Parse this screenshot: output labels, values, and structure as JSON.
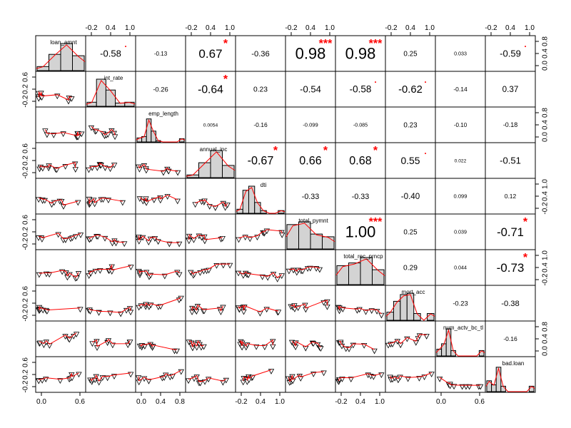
{
  "chart_data": {
    "type": "scatter-matrix",
    "title": "",
    "variables": [
      "loan_amnt",
      "int_rate",
      "emp_length",
      "annual_inc",
      "dti",
      "total_pymnt",
      "total_rec_prncp",
      "mort_acc",
      "num_actv_bc_tl",
      "bad.loan"
    ],
    "correlations": [
      {
        "row": 0,
        "col": 1,
        "value": "-0.58",
        "stars": ".",
        "scale": 1.0
      },
      {
        "row": 0,
        "col": 2,
        "value": "-0.13",
        "stars": "",
        "scale": 0.45
      },
      {
        "row": 0,
        "col": 3,
        "value": "0.67",
        "stars": "*",
        "scale": 1.45
      },
      {
        "row": 0,
        "col": 4,
        "value": "-0.36",
        "stars": "",
        "scale": 0.8
      },
      {
        "row": 0,
        "col": 5,
        "value": "0.98",
        "stars": "***",
        "scale": 2.0
      },
      {
        "row": 0,
        "col": 6,
        "value": "0.98",
        "stars": "***",
        "scale": 2.0
      },
      {
        "row": 0,
        "col": 7,
        "value": "0.25",
        "stars": "",
        "scale": 0.65
      },
      {
        "row": 0,
        "col": 8,
        "value": "0.033",
        "stars": "",
        "scale": 0.35
      },
      {
        "row": 0,
        "col": 9,
        "value": "-0.59",
        "stars": ".",
        "scale": 1.0
      },
      {
        "row": 1,
        "col": 2,
        "value": "-0.26",
        "stars": "",
        "scale": 0.6
      },
      {
        "row": 1,
        "col": 3,
        "value": "-0.64",
        "stars": "*",
        "scale": 1.3
      },
      {
        "row": 1,
        "col": 4,
        "value": "0.23",
        "stars": "",
        "scale": 0.7
      },
      {
        "row": 1,
        "col": 5,
        "value": "-0.54",
        "stars": "",
        "scale": 1.0
      },
      {
        "row": 1,
        "col": 6,
        "value": "-0.58",
        "stars": ".",
        "scale": 1.05
      },
      {
        "row": 1,
        "col": 7,
        "value": "-0.62",
        "stars": ".",
        "scale": 1.2
      },
      {
        "row": 1,
        "col": 8,
        "value": "-0.14",
        "stars": "",
        "scale": 0.5
      },
      {
        "row": 1,
        "col": 9,
        "value": "0.37",
        "stars": "",
        "scale": 0.85
      },
      {
        "row": 2,
        "col": 3,
        "value": "0.0054",
        "stars": "",
        "scale": 0.3
      },
      {
        "row": 2,
        "col": 4,
        "value": "-0.16",
        "stars": "",
        "scale": 0.5
      },
      {
        "row": 2,
        "col": 5,
        "value": "-0.099",
        "stars": "",
        "scale": 0.4
      },
      {
        "row": 2,
        "col": 6,
        "value": "-0.085",
        "stars": "",
        "scale": 0.35
      },
      {
        "row": 2,
        "col": 7,
        "value": "0.23",
        "stars": "",
        "scale": 0.65
      },
      {
        "row": 2,
        "col": 8,
        "value": "-0.10",
        "stars": "",
        "scale": 0.45
      },
      {
        "row": 2,
        "col": 9,
        "value": "-0.18",
        "stars": "",
        "scale": 0.55
      },
      {
        "row": 3,
        "col": 4,
        "value": "-0.67",
        "stars": "*",
        "scale": 1.35
      },
      {
        "row": 3,
        "col": 5,
        "value": "0.66",
        "stars": "*",
        "scale": 1.35
      },
      {
        "row": 3,
        "col": 6,
        "value": "0.68",
        "stars": "*",
        "scale": 1.35
      },
      {
        "row": 3,
        "col": 7,
        "value": "0.55",
        "stars": ".",
        "scale": 1.1
      },
      {
        "row": 3,
        "col": 8,
        "value": "0.022",
        "stars": "",
        "scale": 0.3
      },
      {
        "row": 3,
        "col": 9,
        "value": "-0.51",
        "stars": "",
        "scale": 1.0
      },
      {
        "row": 4,
        "col": 5,
        "value": "-0.33",
        "stars": "",
        "scale": 0.75
      },
      {
        "row": 4,
        "col": 6,
        "value": "-0.33",
        "stars": "",
        "scale": 0.75
      },
      {
        "row": 4,
        "col": 7,
        "value": "-0.40",
        "stars": "",
        "scale": 0.85
      },
      {
        "row": 4,
        "col": 8,
        "value": "0.099",
        "stars": "",
        "scale": 0.4
      },
      {
        "row": 4,
        "col": 9,
        "value": "0.12",
        "stars": "",
        "scale": 0.5
      },
      {
        "row": 5,
        "col": 6,
        "value": "1.00",
        "stars": "***",
        "scale": 2.0
      },
      {
        "row": 5,
        "col": 7,
        "value": "0.25",
        "stars": "",
        "scale": 0.65
      },
      {
        "row": 5,
        "col": 8,
        "value": "0.039",
        "stars": "",
        "scale": 0.35
      },
      {
        "row": 5,
        "col": 9,
        "value": "-0.71",
        "stars": "*",
        "scale": 1.4
      },
      {
        "row": 6,
        "col": 7,
        "value": "0.29",
        "stars": "",
        "scale": 0.7
      },
      {
        "row": 6,
        "col": 8,
        "value": "0.044",
        "stars": "",
        "scale": 0.35
      },
      {
        "row": 6,
        "col": 9,
        "value": "-0.73",
        "stars": "*",
        "scale": 1.45
      },
      {
        "row": 7,
        "col": 8,
        "value": "-0.23",
        "stars": "",
        "scale": 0.6
      },
      {
        "row": 7,
        "col": 9,
        "value": "-0.38",
        "stars": "",
        "scale": 0.8
      },
      {
        "row": 8,
        "col": 9,
        "value": "-0.16",
        "stars": "",
        "scale": 0.5
      }
    ],
    "histograms": [
      [
        0.15,
        0.6,
        1.0,
        0.55
      ],
      [
        0.15,
        1.0,
        0.6,
        0.12,
        0.15
      ],
      [
        0.15,
        0.2,
        0.85,
        0.4,
        0.05,
        0.0,
        0.0,
        0.0,
        0.0,
        0.12
      ],
      [
        0.1,
        0.55,
        1.0,
        0.45
      ],
      [
        0.15,
        0.85,
        1.0,
        0.4,
        0.1,
        0.0,
        0.0,
        0.1
      ],
      [
        0.9,
        1.0,
        0.55,
        0.45
      ],
      [
        0.7,
        0.8,
        1.0,
        0.55
      ],
      [
        0.3,
        0.7,
        0.95,
        1.0,
        0.25,
        0.0,
        0.25
      ],
      [
        0.25,
        0.45,
        1.0,
        0.2,
        0.0,
        0.0,
        0.0,
        0.0,
        0.0,
        0.2
      ],
      [
        0.4,
        0.25,
        0.9,
        0.2,
        0.0,
        0.0,
        0.0,
        0.0,
        0.0,
        0.2
      ]
    ],
    "top_axis": [
      {
        "col": 1,
        "ticks": [
          "-0.2",
          "0.4",
          "1.0"
        ]
      },
      {
        "col": 3,
        "ticks": [
          "-0.2",
          "0.4",
          "1.0"
        ]
      },
      {
        "col": 5,
        "ticks": [
          "-0.2",
          "0.4",
          "1.0"
        ]
      },
      {
        "col": 7,
        "ticks": [
          "-0.2",
          "0.4",
          "1.0"
        ]
      },
      {
        "col": 9,
        "ticks": [
          "-0.2",
          "0.4",
          "1.0"
        ]
      }
    ],
    "bottom_axis": [
      {
        "col": 0,
        "ticks": [
          "0.0",
          "0.6"
        ]
      },
      {
        "col": 2,
        "ticks": [
          "0.0",
          "0.4",
          "0.8"
        ]
      },
      {
        "col": 4,
        "ticks": [
          "-0.2",
          "0.4",
          "1.0"
        ]
      },
      {
        "col": 6,
        "ticks": [
          "-0.2",
          "0.4",
          "1.0"
        ]
      },
      {
        "col": 8,
        "ticks": [
          "0.0",
          "0.6"
        ]
      }
    ],
    "left_axis": [
      {
        "row": 1,
        "ticks": [
          "-0.2",
          "0.2",
          "0.6"
        ]
      },
      {
        "row": 3,
        "ticks": [
          "-0.2",
          "0.2",
          "0.6"
        ]
      },
      {
        "row": 5,
        "ticks": [
          "-0.2",
          "0.2",
          "0.6"
        ]
      },
      {
        "row": 7,
        "ticks": [
          "-0.2",
          "0.2",
          "0.6"
        ]
      },
      {
        "row": 9,
        "ticks": [
          "-0.2",
          "0.2",
          "0.6"
        ]
      }
    ],
    "right_axis": [
      {
        "row": 0,
        "ticks": [
          "0.0",
          "0.4",
          "0.8"
        ]
      },
      {
        "row": 2,
        "ticks": [
          "0.0",
          "0.4",
          "0.8"
        ]
      },
      {
        "row": 4,
        "ticks": [
          "-0.2",
          "0.4",
          "1.0"
        ]
      },
      {
        "row": 6,
        "ticks": [
          "-0.2",
          "0.4",
          "1.0"
        ]
      },
      {
        "row": 8,
        "ticks": [
          "0.0",
          "0.4",
          "0.8"
        ]
      }
    ],
    "colors": {
      "smoother": "#ff0000",
      "stars": "#ff0000",
      "hist_fill": "#d3d3d3",
      "text": "#000000"
    }
  }
}
